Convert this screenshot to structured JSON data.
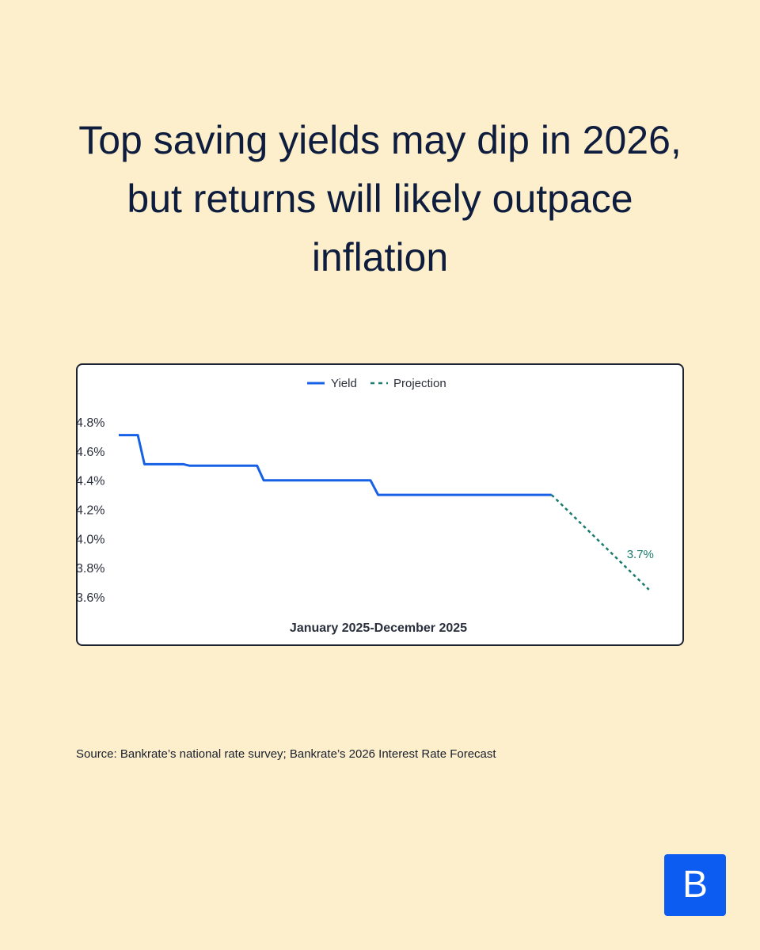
{
  "headline": "Top saving yields may dip in 2026, but returns will likely outpace inflation",
  "source": "Source: Bankrate’s national rate survey; Bankrate’s 2026 Interest Rate Forecast",
  "logo": {
    "letter": "B",
    "color": "#0d5cf2"
  },
  "chart_data": {
    "type": "line",
    "xlabel": "January 2025-December 2025",
    "ylabel": "",
    "ylim": [
      3.6,
      4.8
    ],
    "yticks": [
      "4.8%",
      "4.6%",
      "4.4%",
      "4.2%",
      "4.0%",
      "3.8%",
      "3.6%"
    ],
    "grid": false,
    "legend_position": "top-center",
    "series": [
      {
        "name": "Yield",
        "style": "solid",
        "color": "#1660e6",
        "values": [
          [
            0,
            4.71
          ],
          [
            1,
            4.71
          ],
          [
            1.35,
            4.51
          ],
          [
            3.4,
            4.51
          ],
          [
            3.7,
            4.5
          ],
          [
            7.25,
            4.5
          ],
          [
            7.6,
            4.4
          ],
          [
            13.2,
            4.4
          ],
          [
            13.6,
            4.3
          ],
          [
            22.7,
            4.3
          ]
        ]
      },
      {
        "name": "Projection",
        "style": "dashed",
        "color": "#1a7a6e",
        "values": [
          [
            22.7,
            4.3
          ],
          [
            27.8,
            3.65
          ]
        ]
      }
    ],
    "annotations": [
      {
        "text": "3.7%",
        "color": "#1a7a6e"
      }
    ]
  }
}
